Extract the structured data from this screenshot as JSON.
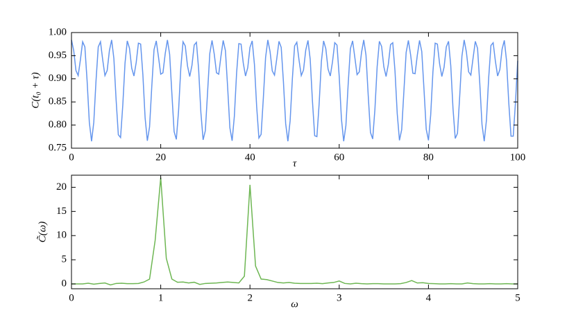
{
  "chart_data": [
    {
      "type": "line",
      "xlabel": "τ",
      "ylabel": "C(t₀ + τ)",
      "color": "#6495ed",
      "xlim": [
        0,
        100
      ],
      "xticks": [
        0,
        20,
        40,
        60,
        80,
        100
      ],
      "ylim": [
        0.75,
        1.0
      ],
      "yticks": [
        {
          "value": 0.75,
          "label": "0.75"
        },
        {
          "value": 0.8,
          "label": "0.80"
        },
        {
          "value": 0.85,
          "label": "0.85"
        },
        {
          "value": 0.9,
          "label": "0.90"
        },
        {
          "value": 0.95,
          "label": "0.95"
        },
        {
          "value": 1.0,
          "label": "1.00"
        }
      ],
      "x": [
        0,
        0.5,
        1,
        1.5,
        2,
        2.5,
        3,
        3.5,
        4,
        4.5,
        5,
        5.5,
        6,
        6.5,
        7,
        7.5,
        8,
        8.5,
        9,
        9.5,
        10,
        10.5,
        11,
        11.5,
        12,
        12.5,
        13,
        13.5,
        14,
        14.5,
        15,
        15.5,
        16,
        16.5,
        17,
        17.5,
        18,
        18.5,
        19,
        19.5,
        20,
        20.5,
        21,
        21.5,
        22,
        22.5,
        23,
        23.5,
        24,
        24.5,
        25,
        25.5,
        26,
        26.5,
        27,
        27.5,
        28,
        28.5,
        29,
        29.5,
        30,
        30.5,
        31,
        31.5,
        32,
        32.5,
        33,
        33.5,
        34,
        34.5,
        35,
        35.5,
        36,
        36.5,
        37,
        37.5,
        38,
        38.5,
        39,
        39.5,
        40,
        40.5,
        41,
        41.5,
        42,
        42.5,
        43,
        43.5,
        44,
        44.5,
        45,
        45.5,
        46,
        46.5,
        47,
        47.5,
        48,
        48.5,
        49,
        49.5,
        50,
        50.5,
        51,
        51.5,
        52,
        52.5,
        53,
        53.5,
        54,
        54.5,
        55,
        55.5,
        56,
        56.5,
        57,
        57.5,
        58,
        58.5,
        59,
        59.5,
        60,
        60.5,
        61,
        61.5,
        62,
        62.5,
        63,
        63.5,
        64,
        64.5,
        65,
        65.5,
        66,
        66.5,
        67,
        67.5,
        68,
        68.5,
        69,
        69.5,
        70,
        70.5,
        71,
        71.5,
        72,
        72.5,
        73,
        73.5,
        74,
        74.5,
        75,
        75.5,
        76,
        76.5,
        77,
        77.5,
        78,
        78.5,
        79,
        79.5,
        80,
        80.5,
        81,
        81.5,
        82,
        82.5,
        83,
        83.5,
        84,
        84.5,
        85,
        85.5,
        86,
        86.5,
        87,
        87.5,
        88,
        88.5,
        89,
        89.5,
        90,
        90.5,
        91,
        91.5,
        92,
        92.5,
        93,
        93.5,
        94,
        94.5,
        95,
        95.5,
        96,
        96.5,
        97,
        97.5,
        98,
        98.5,
        99,
        99.5,
        100
      ],
      "values": [
        0.984,
        0.961,
        0.918,
        0.907,
        0.941,
        0.98,
        0.969,
        0.896,
        0.806,
        0.765,
        0.806,
        0.896,
        0.969,
        0.98,
        0.941,
        0.907,
        0.918,
        0.961,
        0.984,
        0.944,
        0.855,
        0.779,
        0.773,
        0.843,
        0.934,
        0.982,
        0.966,
        0.923,
        0.906,
        0.935,
        0.977,
        0.975,
        0.909,
        0.816,
        0.766,
        0.796,
        0.884,
        0.963,
        0.982,
        0.947,
        0.91,
        0.913,
        0.954,
        0.984,
        0.953,
        0.868,
        0.786,
        0.769,
        0.831,
        0.923,
        0.98,
        0.971,
        0.928,
        0.905,
        0.929,
        0.973,
        0.979,
        0.92,
        0.827,
        0.768,
        0.788,
        0.871,
        0.955,
        0.983,
        0.953,
        0.913,
        0.91,
        0.949,
        0.983,
        0.961,
        0.881,
        0.794,
        0.766,
        0.819,
        0.912,
        0.976,
        0.975,
        0.934,
        0.906,
        0.924,
        0.968,
        0.982,
        0.931,
        0.84,
        0.772,
        0.78,
        0.859,
        0.946,
        0.984,
        0.959,
        0.917,
        0.908,
        0.943,
        0.981,
        0.968,
        0.893,
        0.803,
        0.765,
        0.809,
        0.9,
        0.971,
        0.979,
        0.94,
        0.907,
        0.919,
        0.962,
        0.983,
        0.942,
        0.852,
        0.777,
        0.775,
        0.846,
        0.937,
        0.982,
        0.965,
        0.921,
        0.906,
        0.937,
        0.978,
        0.973,
        0.905,
        0.813,
        0.765,
        0.799,
        0.887,
        0.965,
        0.982,
        0.946,
        0.909,
        0.915,
        0.957,
        0.984,
        0.951,
        0.864,
        0.784,
        0.77,
        0.834,
        0.926,
        0.981,
        0.97,
        0.926,
        0.905,
        0.931,
        0.974,
        0.978,
        0.917,
        0.825,
        0.767,
        0.79,
        0.874,
        0.957,
        0.983,
        0.952,
        0.912,
        0.911,
        0.951,
        0.983,
        0.959,
        0.877,
        0.791,
        0.767,
        0.822,
        0.915,
        0.977,
        0.975,
        0.932,
        0.905,
        0.925,
        0.969,
        0.981,
        0.928,
        0.836,
        0.771,
        0.782,
        0.862,
        0.949,
        0.984,
        0.958,
        0.915,
        0.908,
        0.945,
        0.981,
        0.966,
        0.89,
        0.801,
        0.765,
        0.811,
        0.903,
        0.972,
        0.978,
        0.938,
        0.906,
        0.92,
        0.964,
        0.983,
        0.939,
        0.848,
        0.776,
        0.776,
        0.849,
        0.939
      ]
    },
    {
      "type": "line",
      "xlabel": "ω",
      "ylabel": "C̃(ω)",
      "color": "#6db652",
      "xlim": [
        0,
        5
      ],
      "xticks": [
        0,
        1,
        2,
        3,
        4,
        5
      ],
      "ylim": [
        -1,
        22.5
      ],
      "yticks": [
        0,
        5,
        10,
        15,
        20
      ],
      "x": [
        0,
        0.0625,
        0.125,
        0.1875,
        0.25,
        0.3125,
        0.375,
        0.4375,
        0.5,
        0.5625,
        0.625,
        0.6875,
        0.75,
        0.8125,
        0.875,
        0.9375,
        1,
        1.0625,
        1.125,
        1.1875,
        1.25,
        1.3125,
        1.375,
        1.4375,
        1.5,
        1.5625,
        1.625,
        1.6875,
        1.75,
        1.8125,
        1.875,
        1.9375,
        2,
        2.0625,
        2.125,
        2.1875,
        2.25,
        2.3125,
        2.375,
        2.4375,
        2.5,
        2.5625,
        2.625,
        2.6875,
        2.75,
        2.8125,
        2.875,
        2.9375,
        3,
        3.0625,
        3.125,
        3.1875,
        3.25,
        3.3125,
        3.375,
        3.4375,
        3.5,
        3.5625,
        3.625,
        3.6875,
        3.75,
        3.8125,
        3.875,
        3.9375,
        4,
        4.0625,
        4.125,
        4.1875,
        4.25,
        4.3125,
        4.375,
        4.4375,
        4.5,
        4.5625,
        4.625,
        4.6875,
        4.75,
        4.8125,
        4.875,
        4.9375,
        5
      ],
      "values": [
        0.0,
        0.0,
        0.0,
        0.15,
        -0.05,
        0.1,
        0.2,
        -0.2,
        0.1,
        0.15,
        0.05,
        0.05,
        0.1,
        0.4,
        1.0,
        9.0,
        22.0,
        5.3,
        1.0,
        0.35,
        0.4,
        0.2,
        0.35,
        -0.1,
        0.1,
        0.15,
        0.2,
        0.3,
        0.4,
        0.3,
        0.2,
        1.6,
        20.5,
        3.7,
        1.0,
        0.9,
        0.6,
        0.3,
        0.2,
        0.3,
        0.15,
        0.1,
        0.1,
        0.1,
        0.15,
        0.05,
        0.2,
        0.3,
        0.6,
        0.1,
        0.0,
        0.15,
        0.05,
        0.0,
        0.05,
        0.05,
        0.0,
        0.0,
        0.0,
        0.05,
        0.3,
        0.7,
        0.2,
        0.25,
        0.1,
        0.05,
        0.0,
        0.0,
        0.05,
        0.0,
        0.0,
        0.2,
        0.05,
        0.0,
        0.0,
        0.05,
        0.0,
        0.0,
        0.05,
        0.0,
        0.0
      ]
    }
  ]
}
